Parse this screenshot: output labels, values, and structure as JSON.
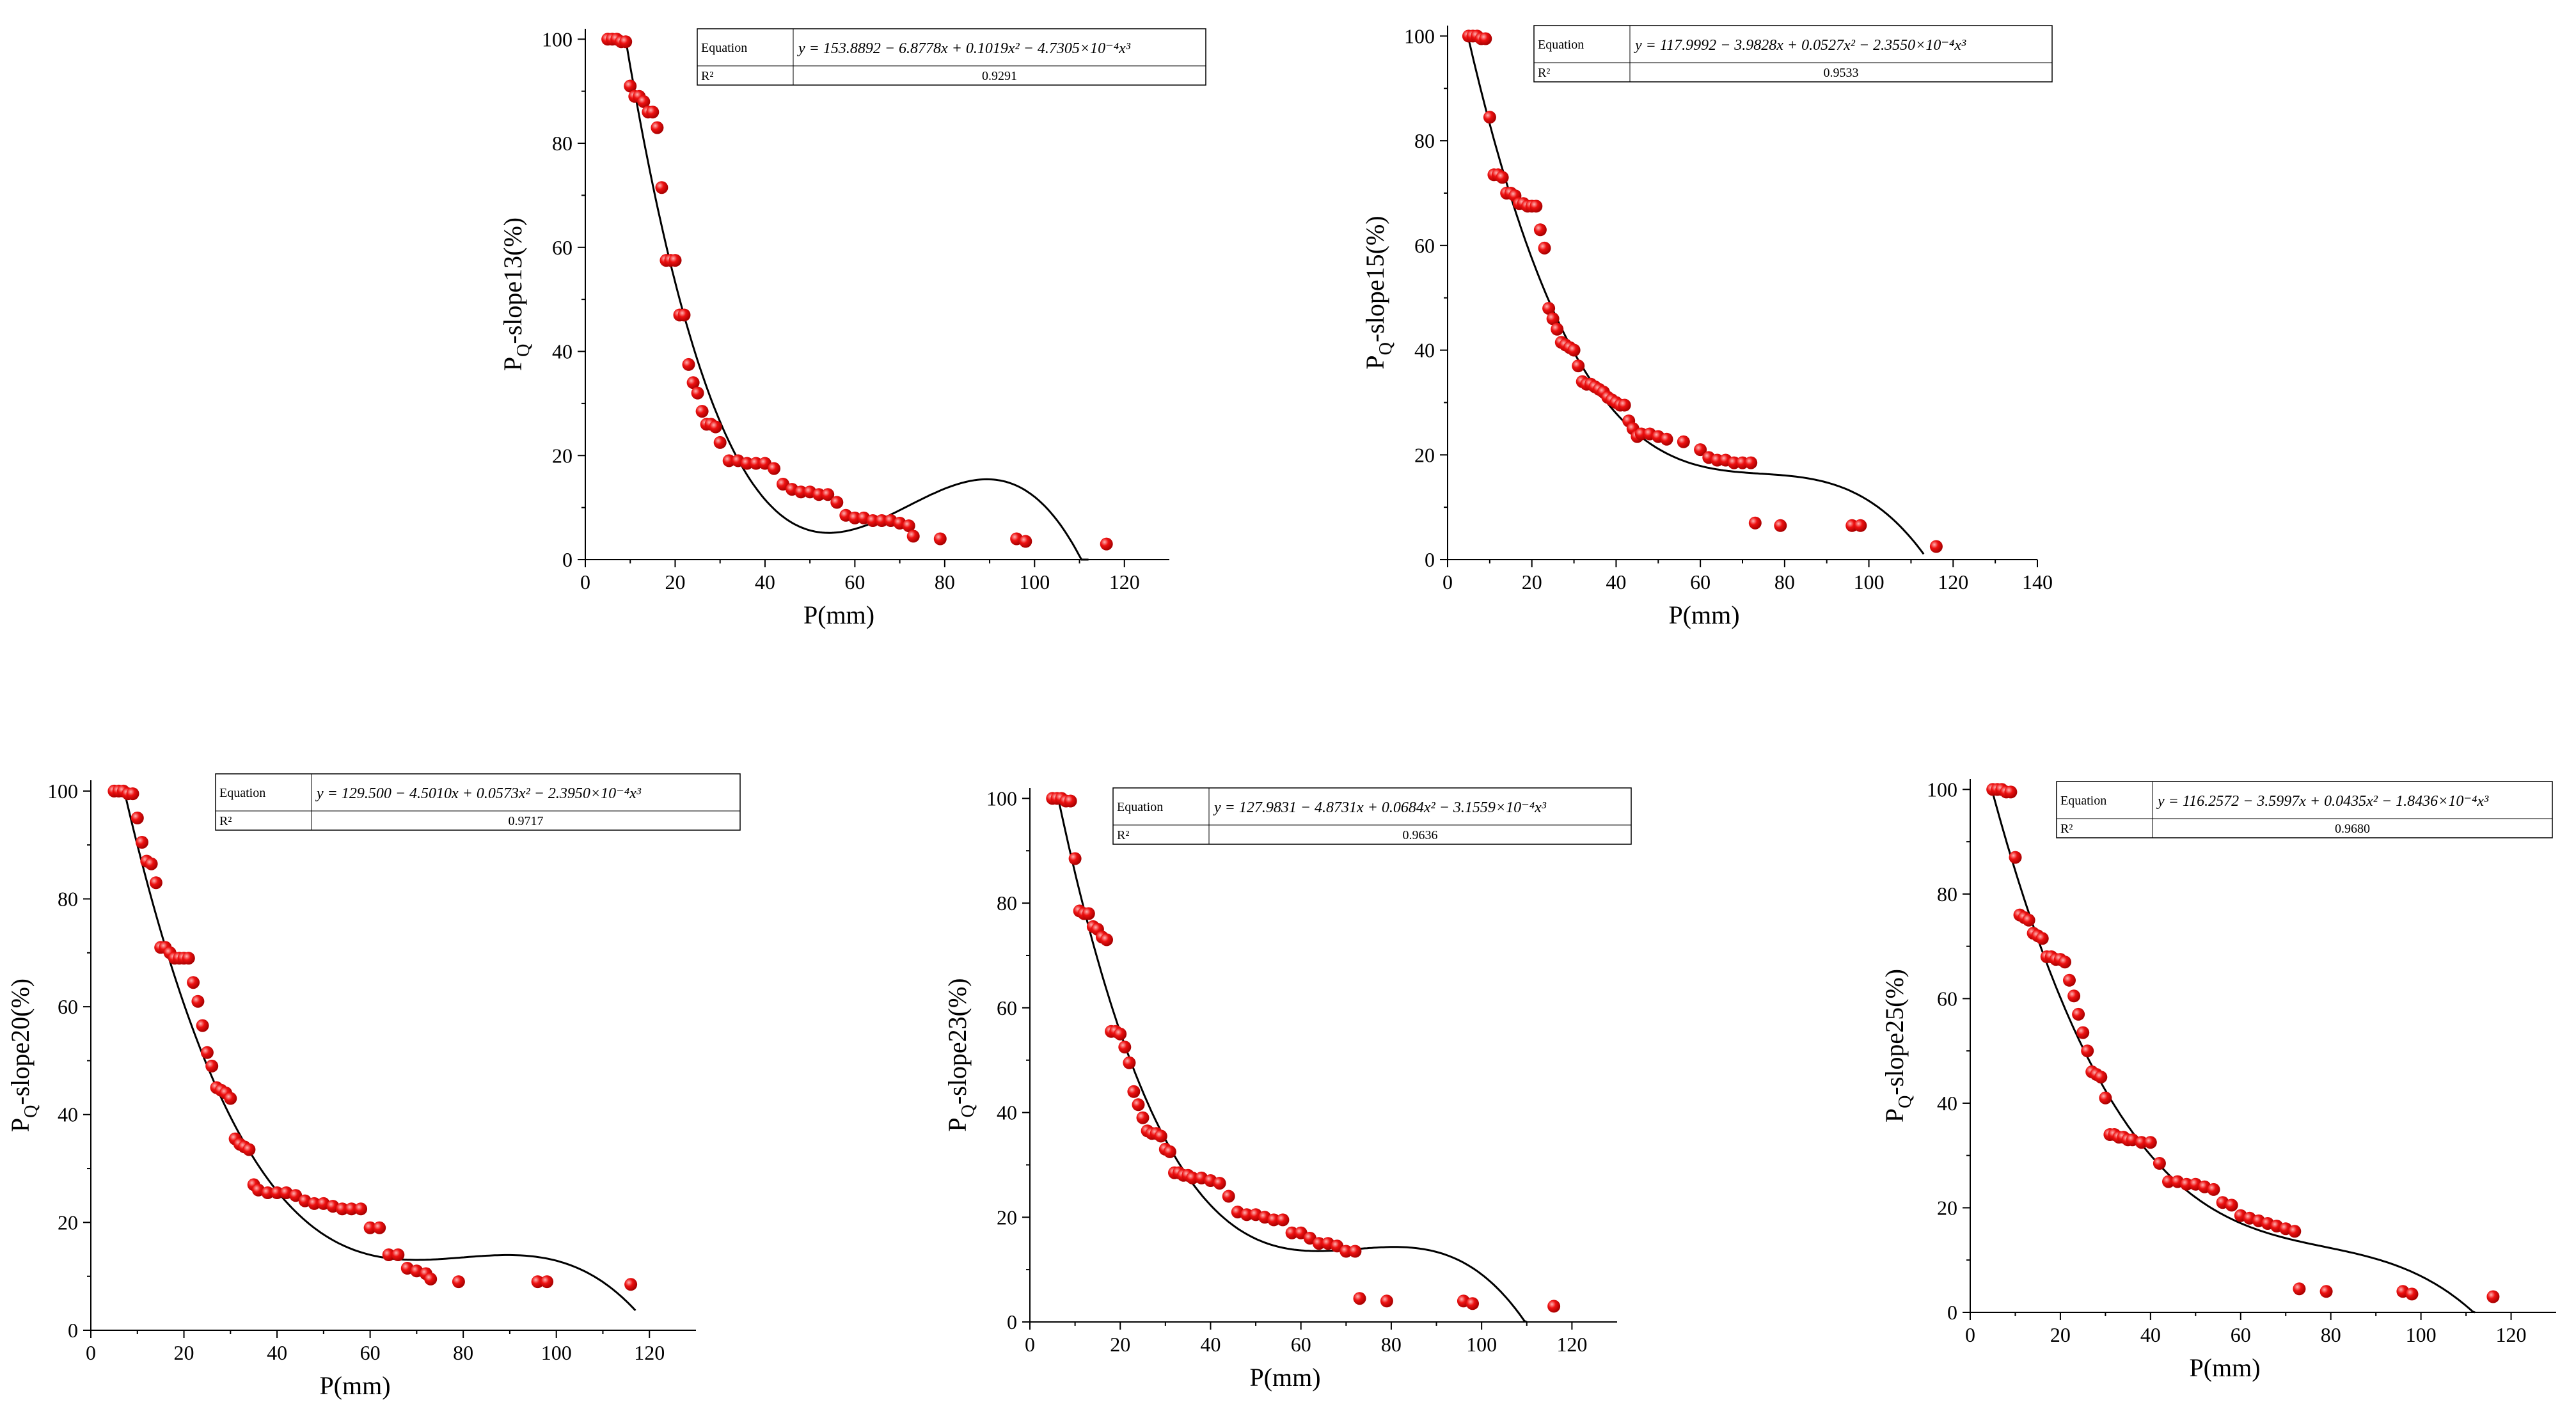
{
  "figure": {
    "background": "#ffffff",
    "point_color": "#ee1111",
    "curve_color": "#000000"
  },
  "chart_data": [
    {
      "type": "scatter",
      "xlabel": "P(mm)",
      "ylabel_main": "P",
      "ylabel_sub": "Q",
      "ylabel_rest": "-slope13(%)",
      "xlim": [
        0,
        130
      ],
      "ylim": [
        0,
        102
      ],
      "xticks": [
        0,
        20,
        40,
        60,
        80,
        100,
        120
      ],
      "yticks": [
        0,
        20,
        40,
        60,
        80,
        100
      ],
      "table": {
        "equation_label": "Equation",
        "equation": "y = 153.8892 − 6.8778x + 0.1019x² − 4.7305×10⁻⁴x³",
        "r2_label": "R²",
        "r2": "0.9291"
      },
      "fit": {
        "coef": [
          153.8892,
          -6.8778,
          0.1019,
          -0.00047305
        ],
        "x_range": [
          9,
          112
        ]
      },
      "series": [
        {
          "x": [
            5,
            6,
            7,
            8,
            9,
            10,
            11,
            12,
            13,
            14,
            15,
            16,
            17,
            18,
            19,
            20,
            21,
            22,
            23,
            24,
            25,
            26,
            27,
            28,
            29,
            30,
            32,
            34,
            36,
            38,
            40,
            42,
            44,
            46,
            48,
            50,
            52,
            54,
            56,
            58,
            60,
            62,
            64,
            66,
            68,
            70,
            72,
            73,
            79,
            96,
            98,
            116
          ],
          "y": [
            100,
            100,
            100,
            99.5,
            99.5,
            91,
            89,
            89,
            88,
            86,
            86,
            83,
            71.5,
            57.5,
            57.5,
            57.5,
            47,
            47,
            37.5,
            34,
            32,
            28.5,
            26,
            26,
            25.5,
            22.5,
            19,
            19,
            18.5,
            18.5,
            18.5,
            17.5,
            14.5,
            13.5,
            13,
            13,
            12.5,
            12.5,
            11,
            8.5,
            8,
            8,
            7.5,
            7.5,
            7.5,
            7,
            6.5,
            4.5,
            4,
            4,
            3.5,
            3
          ]
        }
      ]
    },
    {
      "type": "scatter",
      "xlabel": "P(mm)",
      "ylabel_main": "P",
      "ylabel_sub": "Q",
      "ylabel_rest": "-slope15(%)",
      "xlim": [
        0,
        140
      ],
      "ylim": [
        0,
        102
      ],
      "xticks": [
        0,
        20,
        40,
        60,
        80,
        100,
        120,
        140
      ],
      "yticks": [
        0,
        20,
        40,
        60,
        80,
        100
      ],
      "table": {
        "equation_label": "Equation",
        "equation": "y = 117.9992 − 3.9828x + 0.0527x² − 2.3550×10⁻⁴x³",
        "r2_label": "R²",
        "r2": "0.9533"
      },
      "fit": {
        "coef": [
          117.9992,
          -3.9828,
          0.0527,
          -0.0002355
        ],
        "x_range": [
          5,
          113
        ]
      },
      "series": [
        {
          "x": [
            5,
            6,
            7,
            8,
            9,
            10,
            11,
            12,
            13,
            14,
            15,
            16,
            17,
            18,
            19,
            20,
            21,
            22,
            23,
            24,
            25,
            26,
            27,
            28,
            29,
            30,
            31,
            32,
            33,
            34,
            35,
            36,
            37,
            38,
            39,
            40,
            41,
            42,
            43,
            44,
            45,
            46,
            48,
            50,
            52,
            56,
            60,
            62,
            64,
            66,
            68,
            70,
            72,
            73,
            79,
            96,
            98,
            116
          ],
          "y": [
            100,
            100,
            100,
            99.5,
            99.5,
            84.5,
            73.5,
            73.5,
            73,
            70,
            70,
            69.5,
            68,
            68,
            67.5,
            67.5,
            67.5,
            63,
            59.5,
            48,
            46,
            44,
            41.5,
            41,
            40.5,
            40,
            37,
            34,
            33.5,
            33.5,
            33,
            32.5,
            32,
            31,
            30.5,
            30,
            29.5,
            29.5,
            26.5,
            25,
            23.5,
            24,
            24,
            23.5,
            23,
            22.5,
            21,
            19.5,
            19,
            19,
            18.5,
            18.5,
            18.5,
            7,
            6.5,
            6.5,
            6.5,
            2.5
          ]
        }
      ]
    },
    {
      "type": "scatter",
      "xlabel": "P(mm)",
      "ylabel_main": "P",
      "ylabel_sub": "Q",
      "ylabel_rest": "-slope20(%)",
      "xlim": [
        0,
        130
      ],
      "ylim": [
        0,
        102
      ],
      "xticks": [
        0,
        20,
        40,
        60,
        80,
        100,
        120
      ],
      "yticks": [
        0,
        20,
        40,
        60,
        80,
        100
      ],
      "table": {
        "equation_label": "Equation",
        "equation": "y = 129.500 − 4.5010x + 0.0573x² − 2.3950×10⁻⁴x³",
        "r2_label": "R²",
        "r2": "0.9717"
      },
      "fit": {
        "coef": [
          129.5,
          -4.501,
          0.0573,
          -0.0002395
        ],
        "x_range": [
          7,
          117
        ]
      },
      "series": [
        {
          "x": [
            5,
            6,
            7,
            8,
            9,
            10,
            11,
            12,
            13,
            14,
            15,
            16,
            17,
            18,
            19,
            20,
            21,
            22,
            23,
            24,
            25,
            26,
            27,
            28,
            29,
            30,
            31,
            32,
            33,
            34,
            35,
            36,
            38,
            40,
            42,
            44,
            46,
            48,
            50,
            52,
            54,
            56,
            58,
            60,
            62,
            64,
            66,
            68,
            70,
            72,
            73,
            79,
            96,
            98,
            116
          ],
          "y": [
            100,
            100,
            100,
            99.5,
            99.5,
            95,
            90.5,
            87,
            86.5,
            83,
            71,
            71,
            70,
            69,
            69,
            69,
            69,
            64.5,
            61,
            56.5,
            51.5,
            49,
            45,
            44.5,
            44,
            43,
            35.5,
            34.5,
            34,
            33.5,
            27,
            26,
            25.5,
            25.5,
            25.5,
            25,
            24,
            23.5,
            23.5,
            23,
            22.5,
            22.5,
            22.5,
            19,
            19,
            14,
            14,
            11.5,
            11,
            10.5,
            9.5,
            9,
            9,
            9,
            8.5
          ]
        }
      ]
    },
    {
      "type": "scatter",
      "xlabel": "P(mm)",
      "ylabel_main": "P",
      "ylabel_sub": "Q",
      "ylabel_rest": "-slope23(%)",
      "xlim": [
        0,
        130
      ],
      "ylim": [
        0,
        102
      ],
      "xticks": [
        0,
        20,
        40,
        60,
        80,
        100,
        120
      ],
      "yticks": [
        0,
        20,
        40,
        60,
        80,
        100
      ],
      "table": {
        "equation_label": "Equation",
        "equation": "y = 127.9831 − 4.8731x + 0.0684x² − 3.1559×10⁻⁴x³",
        "r2_label": "R²",
        "r2": "0.9636"
      },
      "fit": {
        "coef": [
          127.9831,
          -4.8731,
          0.0684,
          -0.00031559
        ],
        "x_range": [
          6,
          110
        ]
      },
      "series": [
        {
          "x": [
            5,
            6,
            7,
            8,
            9,
            10,
            11,
            12,
            13,
            14,
            15,
            16,
            17,
            18,
            19,
            20,
            21,
            22,
            23,
            24,
            25,
            26,
            27,
            28,
            29,
            30,
            31,
            32,
            33,
            34,
            35,
            36,
            38,
            40,
            42,
            44,
            46,
            48,
            50,
            52,
            54,
            56,
            58,
            60,
            62,
            64,
            66,
            68,
            70,
            72,
            73,
            79,
            96,
            98,
            116
          ],
          "y": [
            100,
            100,
            100,
            99.5,
            99.5,
            88.5,
            78.5,
            78,
            78,
            75.5,
            75,
            73.5,
            73,
            55.5,
            55.5,
            55,
            52.5,
            49.5,
            44,
            41.5,
            39,
            36.5,
            36,
            36,
            35.5,
            33,
            32.5,
            28.5,
            28.5,
            28,
            28,
            27.5,
            27.5,
            27,
            26.5,
            24,
            21,
            20.5,
            20.5,
            20,
            19.5,
            19.5,
            17,
            17,
            16,
            15,
            15,
            14.5,
            13.5,
            13.5,
            4.5,
            4,
            4,
            3.5,
            3
          ]
        }
      ]
    },
    {
      "type": "scatter",
      "xlabel": "P(mm)",
      "ylabel_main": "P",
      "ylabel_sub": "Q",
      "ylabel_rest": "-slope25(%)",
      "xlim": [
        0,
        130
      ],
      "ylim": [
        0,
        102
      ],
      "xticks": [
        0,
        20,
        40,
        60,
        80,
        100,
        120
      ],
      "yticks": [
        0,
        20,
        40,
        60,
        80,
        100
      ],
      "table": {
        "equation_label": "Equation",
        "equation": "y = 116.2572 − 3.5997x + 0.0435x² − 1.8436×10⁻⁴x³",
        "r2_label": "R²",
        "r2": "0.9680"
      },
      "fit": {
        "coef": [
          116.2572,
          -3.5997,
          0.0435,
          -0.00018436
        ],
        "x_range": [
          5,
          112
        ]
      },
      "series": [
        {
          "x": [
            5,
            6,
            7,
            8,
            9,
            10,
            11,
            12,
            13,
            14,
            15,
            16,
            17,
            18,
            19,
            20,
            21,
            22,
            23,
            24,
            25,
            26,
            27,
            28,
            29,
            30,
            31,
            32,
            33,
            34,
            35,
            36,
            38,
            40,
            42,
            44,
            46,
            48,
            50,
            52,
            54,
            56,
            58,
            60,
            62,
            64,
            66,
            68,
            70,
            72,
            73,
            79,
            96,
            98,
            116
          ],
          "y": [
            100,
            100,
            100,
            99.5,
            99.5,
            87,
            76,
            75.5,
            75,
            72.5,
            72,
            71.5,
            68,
            68,
            67.5,
            67.5,
            67,
            63.5,
            60.5,
            57,
            53.5,
            50,
            46,
            45.5,
            45,
            41,
            34,
            34,
            33.5,
            33.5,
            33,
            33,
            32.5,
            32.5,
            28.5,
            25,
            25,
            24.5,
            24.5,
            24,
            23.5,
            21,
            20.5,
            18.5,
            18,
            17.5,
            17,
            16.5,
            16,
            15.5,
            4.5,
            4,
            4,
            3.5,
            3
          ]
        }
      ]
    }
  ]
}
